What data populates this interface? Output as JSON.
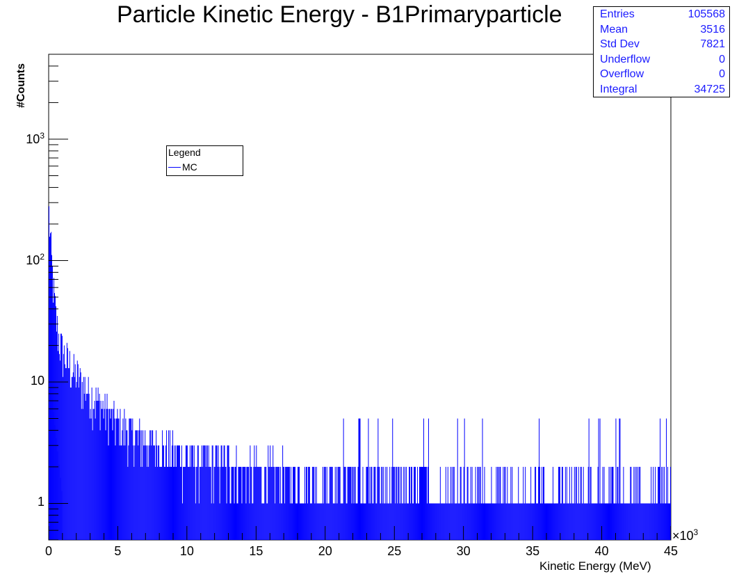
{
  "chart_data": {
    "type": "bar",
    "title": "Particle Kinetic Energy - B1Primaryparticle",
    "xlabel": "Kinetic Energy (MeV)",
    "ylabel": "#Counts",
    "x_multiplier": "×10",
    "x_multiplier_exp": "3",
    "xlim": [
      0,
      45000
    ],
    "ylim": [
      0.5,
      5000
    ],
    "y_scale": "log",
    "x_ticks": [
      "0",
      "5",
      "10",
      "15",
      "20",
      "25",
      "30",
      "35",
      "40",
      "45"
    ],
    "y_ticks": [
      {
        "value": 1,
        "label": "1",
        "exp": ""
      },
      {
        "value": 10,
        "label": "10",
        "exp": ""
      },
      {
        "value": 100,
        "label": "10",
        "exp": "2"
      },
      {
        "value": 1000,
        "label": "10",
        "exp": "3"
      }
    ],
    "series": [
      {
        "name": "MC",
        "color": "#0000ff",
        "fill": "#0000ff"
      },
      {
        "name": "",
        "color": "#8080ff",
        "fill": "#a8a8ff"
      }
    ],
    "stats": [
      {
        "label": "Entries",
        "value": "105568"
      },
      {
        "label": "Mean",
        "value": "3516"
      },
      {
        "label": "Std Dev",
        "value": "7821"
      },
      {
        "label": "Underflow",
        "value": "0"
      },
      {
        "label": "Overflow",
        "value": "0"
      },
      {
        "label": "Integral",
        "value": "34725"
      }
    ],
    "legend": {
      "header": "Legend",
      "entries": [
        "MC"
      ],
      "placement": "upper-left-center"
    },
    "grid": false
  }
}
